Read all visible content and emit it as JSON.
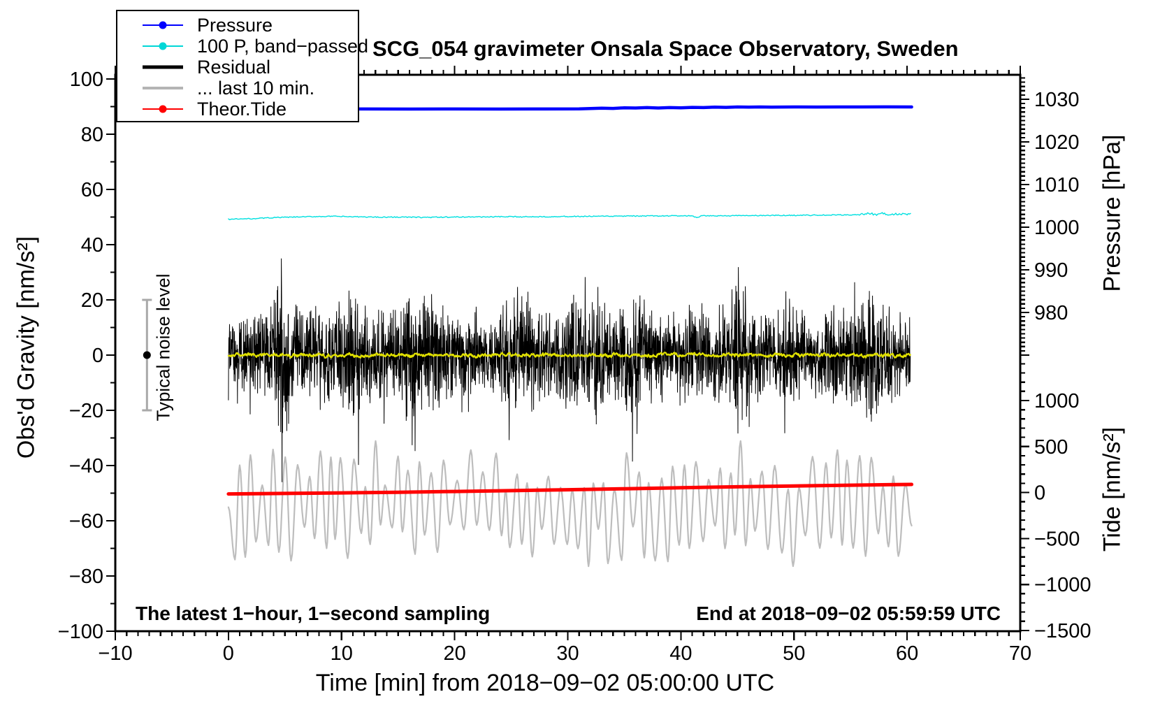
{
  "title": "SCG_054 gravimeter Onsala Space Observatory, Sweden",
  "annotations": {
    "sampling_note": "The latest 1−hour, 1−second sampling",
    "end_time": "End at 2018−09−02 05:59:59 UTC"
  },
  "legend": {
    "items": [
      {
        "label": "Pressure",
        "color": "#0000ff",
        "marker": true,
        "line_width": 2
      },
      {
        "label": "100 P, band−passed",
        "color": "#00d7d7",
        "marker": true,
        "line_width": 2
      },
      {
        "label": "Residual",
        "color": "#000000",
        "marker": false,
        "line_width": 5
      },
      {
        "label": "... last 10 min.",
        "color": "#b4b4b4",
        "marker": false,
        "line_width": 4
      },
      {
        "label": "Theor.Tide",
        "color": "#ff0000",
        "marker": true,
        "line_width": 2
      }
    ]
  },
  "chart_data": {
    "type": "line",
    "title": "SCG_054 gravimeter Onsala Space Observatory, Sweden",
    "x_axis": {
      "label": "Time [min] from 2018−09−02 05:00:00 UTC",
      "min": -10,
      "max": 70,
      "major_ticks": [
        -10,
        0,
        10,
        20,
        30,
        40,
        50,
        60,
        70
      ],
      "minor_step": 1
    },
    "y_left": {
      "label": "Obs'd Gravity [nm/s²]",
      "min": -100,
      "max": 100,
      "major_ticks": [
        -100,
        -80,
        -60,
        -40,
        -20,
        0,
        20,
        40,
        60,
        80,
        100
      ],
      "minor_step": 10
    },
    "y_right_pressure": {
      "label": "Pressure [hPa]",
      "major_ticks": [
        1030,
        1020,
        1010,
        1000,
        990,
        980
      ],
      "minor_step": 1,
      "minor_range": [
        970,
        1035
      ],
      "unlabeled_major": [
        970
      ]
    },
    "y_right_tide": {
      "label": "Tide [nm/s²]",
      "major_ticks": [
        1000,
        500,
        0,
        -500,
        -1000,
        -1500
      ],
      "minor_step": 100,
      "minor_range": [
        -1500,
        1400
      ]
    },
    "noise_bar": {
      "x": -7.2,
      "center": 0,
      "half_range": 20,
      "label": "Typical noise level",
      "bar_color": "#a9a9a9",
      "dot_color": "#000000"
    },
    "series": [
      {
        "name": "... last 10 min.",
        "axis": "tide",
        "color": "#bdbdbd",
        "width": 2.2,
        "oscillation": {
          "seed": 777,
          "center": -160,
          "half_period": 0.5,
          "base_amplitude": 460,
          "spike_chance": 0.06,
          "spike_gain": 1.55,
          "max": 560,
          "min": -950,
          "x_end": 60.4
        }
      },
      {
        "name": "Theor.Tide",
        "axis": "tide",
        "color": "#ff0000",
        "width": 5,
        "points": [
          [
            0,
            -15
          ],
          [
            5,
            -10
          ],
          [
            10,
            -4
          ],
          [
            15,
            3
          ],
          [
            20,
            11
          ],
          [
            25,
            20
          ],
          [
            30,
            30
          ],
          [
            35,
            41
          ],
          [
            40,
            52
          ],
          [
            45,
            62
          ],
          [
            50,
            71
          ],
          [
            55,
            80
          ],
          [
            60.4,
            88
          ]
        ]
      },
      {
        "name": "Residual",
        "axis": "gravity",
        "color": "#000000",
        "width": 1,
        "noise": {
          "seed": 12345,
          "step": 0.02,
          "x_end": 60.3,
          "gain": 1.3,
          "spike_chance": 0.02,
          "spike_gain": 1.7,
          "deep_chance": 0.004,
          "clamp": [
            -46,
            35
          ],
          "envelope": [
            [
              0,
              13
            ],
            [
              1,
              14
            ],
            [
              2,
              13
            ],
            [
              3,
              14
            ],
            [
              4,
              17
            ],
            [
              4.8,
              26
            ],
            [
              5.2,
              28
            ],
            [
              5.6,
              18
            ],
            [
              6,
              15
            ],
            [
              7,
              14
            ],
            [
              8,
              16
            ],
            [
              9,
              15
            ],
            [
              10,
              18
            ],
            [
              10.8,
              21
            ],
            [
              11.2,
              23
            ],
            [
              12,
              16
            ],
            [
              13,
              14
            ],
            [
              14,
              15
            ],
            [
              15,
              16
            ],
            [
              16,
              22
            ],
            [
              16.6,
              26
            ],
            [
              17,
              20
            ],
            [
              17.6,
              23
            ],
            [
              18,
              24
            ],
            [
              18.6,
              18
            ],
            [
              19,
              15
            ],
            [
              20,
              14
            ],
            [
              21,
              13
            ],
            [
              22,
              14
            ],
            [
              23,
              13
            ],
            [
              24,
              15
            ],
            [
              25,
              18
            ],
            [
              25.8,
              23
            ],
            [
              26.4,
              22
            ],
            [
              27,
              16
            ],
            [
              28,
              14
            ],
            [
              29,
              15
            ],
            [
              30,
              17
            ],
            [
              30.8,
              21
            ],
            [
              31.4,
              20
            ],
            [
              32,
              15
            ],
            [
              32.8,
              22
            ],
            [
              33.4,
              19
            ],
            [
              34,
              15
            ],
            [
              35,
              16
            ],
            [
              36,
              19
            ],
            [
              36.6,
              17
            ],
            [
              37,
              15
            ],
            [
              38,
              14
            ],
            [
              39,
              13
            ],
            [
              40,
              15
            ],
            [
              41,
              14
            ],
            [
              42,
              16
            ],
            [
              43,
              15
            ],
            [
              44,
              17
            ],
            [
              44.6,
              24
            ],
            [
              45,
              26
            ],
            [
              45.6,
              19
            ],
            [
              46,
              16
            ],
            [
              47,
              14
            ],
            [
              48,
              15
            ],
            [
              49,
              14
            ],
            [
              50,
              15
            ],
            [
              51,
              13
            ],
            [
              52,
              14
            ],
            [
              53,
              15
            ],
            [
              54,
              14
            ],
            [
              55,
              15
            ],
            [
              56,
              17
            ],
            [
              56.8,
              21
            ],
            [
              57.4,
              19
            ],
            [
              58,
              16
            ],
            [
              59,
              14
            ],
            [
              60,
              13
            ]
          ]
        }
      },
      {
        "name": "Residual smoothed",
        "axis": "gravity",
        "color": "#e0e000",
        "width": 2.2,
        "smooth_noise": {
          "seed": 99,
          "step": 0.04,
          "x_end": 60.3,
          "persistence": 0.72,
          "kick": 0.9,
          "clamp": 2.2
        }
      },
      {
        "name": "100 P, band−passed",
        "axis": "gravity",
        "color": "#00e0e0",
        "width": 1.4,
        "jitter": 0.18,
        "jitter_tail_from": 55.5,
        "jitter_tail_gain": 2,
        "points": [
          [
            0,
            49.2
          ],
          [
            1,
            49.3
          ],
          [
            2,
            49.4
          ],
          [
            3,
            49.6
          ],
          [
            4,
            49.8
          ],
          [
            5,
            49.9
          ],
          [
            6,
            50.0
          ],
          [
            7,
            50.1
          ],
          [
            8,
            50.2
          ],
          [
            9,
            50.25
          ],
          [
            10,
            50.2
          ],
          [
            11,
            50.1
          ],
          [
            12,
            50.05
          ],
          [
            13,
            50.0
          ],
          [
            14,
            49.95
          ],
          [
            15,
            50.0
          ],
          [
            16,
            49.95
          ],
          [
            17,
            49.9
          ],
          [
            18,
            49.9
          ],
          [
            19,
            49.95
          ],
          [
            20,
            50.0
          ],
          [
            22,
            50.05
          ],
          [
            24,
            50.1
          ],
          [
            26,
            50.1
          ],
          [
            28,
            50.15
          ],
          [
            30,
            50.2
          ],
          [
            32,
            50.25
          ],
          [
            34,
            50.3
          ],
          [
            36,
            50.35
          ],
          [
            38,
            50.4
          ],
          [
            40,
            50.45
          ],
          [
            41,
            50.4
          ],
          [
            41.4,
            49.7
          ],
          [
            41.8,
            50.4
          ],
          [
            43,
            50.45
          ],
          [
            45,
            50.5
          ],
          [
            47,
            50.55
          ],
          [
            49,
            50.6
          ],
          [
            51,
            50.65
          ],
          [
            53,
            50.7
          ],
          [
            55,
            50.8
          ],
          [
            56,
            51.0
          ],
          [
            56.6,
            51.4
          ],
          [
            57.2,
            50.9
          ],
          [
            57.8,
            51.3
          ],
          [
            58.4,
            50.8
          ],
          [
            59,
            51.1
          ],
          [
            60.4,
            51.0
          ]
        ]
      },
      {
        "name": "Pressure",
        "axis": "pressure",
        "color": "#0000ff",
        "width": 4.5,
        "points": [
          [
            0,
            1027.7
          ],
          [
            4,
            1027.72
          ],
          [
            8,
            1027.7
          ],
          [
            12,
            1027.72
          ],
          [
            16,
            1027.7
          ],
          [
            20,
            1027.72
          ],
          [
            24,
            1027.7
          ],
          [
            28,
            1027.72
          ],
          [
            31,
            1027.75
          ],
          [
            33,
            1027.9
          ],
          [
            34,
            1027.85
          ],
          [
            35,
            1028.0
          ],
          [
            36,
            1027.95
          ],
          [
            37,
            1028.05
          ],
          [
            38,
            1027.95
          ],
          [
            39,
            1028.05
          ],
          [
            40,
            1028.0
          ],
          [
            41,
            1028.1
          ],
          [
            42,
            1028.05
          ],
          [
            43,
            1028.15
          ],
          [
            44,
            1028.1
          ],
          [
            45,
            1028.2
          ],
          [
            46,
            1028.15
          ],
          [
            47,
            1028.2
          ],
          [
            48,
            1028.15
          ],
          [
            50,
            1028.2
          ],
          [
            52,
            1028.18
          ],
          [
            54,
            1028.2
          ],
          [
            56,
            1028.2
          ],
          [
            58,
            1028.22
          ],
          [
            60.4,
            1028.2
          ]
        ]
      }
    ]
  }
}
